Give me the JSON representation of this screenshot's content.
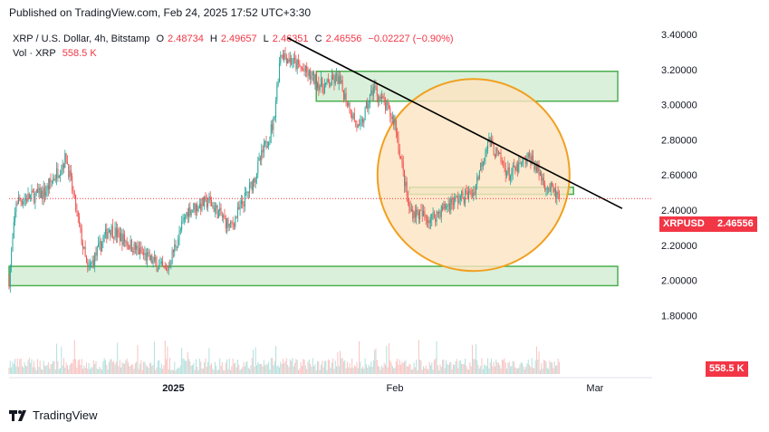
{
  "header": {
    "published": "Published on TradingView.com, Feb 24, 2025 17:52 UTC+3:30"
  },
  "legend": {
    "symbol": "XRP / U.S. Dollar, 4h, Bitstamp",
    "open_label": "O",
    "open": "2.48734",
    "high_label": "H",
    "high": "2.49657",
    "low_label": "L",
    "low": "2.46351",
    "close_label": "C",
    "close": "2.46556",
    "change": "−0.02227 (−0.90%)",
    "vol_label": "Vol · XRP",
    "vol": "558.5 K"
  },
  "price_tag": {
    "symbol": "XRPUSD",
    "price": "2.46556"
  },
  "volume_tag": "558.5 K",
  "footer": {
    "brand": "TradingView"
  },
  "colors": {
    "up": "#26a69a",
    "down": "#ef5350",
    "zone_fill": "#d4edd4",
    "zone_stroke": "#4caf50",
    "circle_fill": "#fde3c0",
    "circle_stroke": "#f0a020",
    "trend": "#000000",
    "last_price": "#f23645"
  },
  "chart_data": {
    "type": "candlestick",
    "symbol": "XRP / U.S. Dollar",
    "interval": "4h",
    "exchange": "Bitstamp",
    "ylim": [
      1.7,
      3.45
    ],
    "y_ticks": [
      "3.40000",
      "3.20000",
      "3.00000",
      "2.80000",
      "2.60000",
      "2.40000",
      "2.20000",
      "2.00000",
      "1.80000"
    ],
    "y_tick_values": [
      3.4,
      3.2,
      3.0,
      2.8,
      2.6,
      2.4,
      2.2,
      2.0,
      1.8
    ],
    "x_ticks": [
      {
        "label": "2025",
        "date": "2025-01-01"
      },
      {
        "label": "Feb",
        "date": "2025-02-01"
      },
      {
        "label": "Mar",
        "date": "2025-03-01"
      }
    ],
    "x_range": [
      "2024-12-09",
      "2025-03-09"
    ],
    "last_date": "2025-02-24",
    "last_price": 2.46556,
    "price_path": [
      {
        "date": "2024-12-09",
        "price": 2.0
      },
      {
        "date": "2024-12-10",
        "price": 2.45
      },
      {
        "date": "2024-12-14",
        "price": 2.5
      },
      {
        "date": "2024-12-17",
        "price": 2.7
      },
      {
        "date": "2024-12-20",
        "price": 2.05
      },
      {
        "date": "2024-12-23",
        "price": 2.3
      },
      {
        "date": "2024-12-26",
        "price": 2.2
      },
      {
        "date": "2024-12-31",
        "price": 2.05
      },
      {
        "date": "2025-01-03",
        "price": 2.4
      },
      {
        "date": "2025-01-06",
        "price": 2.45
      },
      {
        "date": "2025-01-09",
        "price": 2.3
      },
      {
        "date": "2025-01-12",
        "price": 2.55
      },
      {
        "date": "2025-01-15",
        "price": 2.9
      },
      {
        "date": "2025-01-16",
        "price": 3.3
      },
      {
        "date": "2025-01-19",
        "price": 3.2
      },
      {
        "date": "2025-01-22",
        "price": 3.1
      },
      {
        "date": "2025-01-24",
        "price": 3.15
      },
      {
        "date": "2025-01-27",
        "price": 2.85
      },
      {
        "date": "2025-01-29",
        "price": 3.1
      },
      {
        "date": "2025-02-01",
        "price": 2.9
      },
      {
        "date": "2025-02-03",
        "price": 2.4
      },
      {
        "date": "2025-02-06",
        "price": 2.35
      },
      {
        "date": "2025-02-09",
        "price": 2.45
      },
      {
        "date": "2025-02-12",
        "price": 2.5
      },
      {
        "date": "2025-02-14",
        "price": 2.8
      },
      {
        "date": "2025-02-17",
        "price": 2.6
      },
      {
        "date": "2025-02-20",
        "price": 2.7
      },
      {
        "date": "2025-02-22",
        "price": 2.55
      },
      {
        "date": "2025-02-24",
        "price": 2.46556
      }
    ],
    "annotations": {
      "zones": [
        {
          "name": "resistance-zone",
          "y": [
            3.02,
            3.19
          ],
          "x": [
            "2025-01-21",
            "2025-03-14"
          ]
        },
        {
          "name": "mid-zone",
          "y": [
            2.49,
            2.53
          ],
          "x": [
            "2025-02-03",
            "2025-02-26"
          ]
        },
        {
          "name": "support-zone",
          "y": [
            1.97,
            2.08
          ],
          "x": [
            "2024-12-09",
            "2025-03-19"
          ]
        }
      ],
      "trendline": {
        "from": {
          "date": "2025-01-17",
          "price": 3.38
        },
        "to": {
          "date": "2025-03-01",
          "price": 2.43
        }
      },
      "circle": {
        "center_date": "2025-02-12",
        "center_price": 2.6
      }
    }
  }
}
